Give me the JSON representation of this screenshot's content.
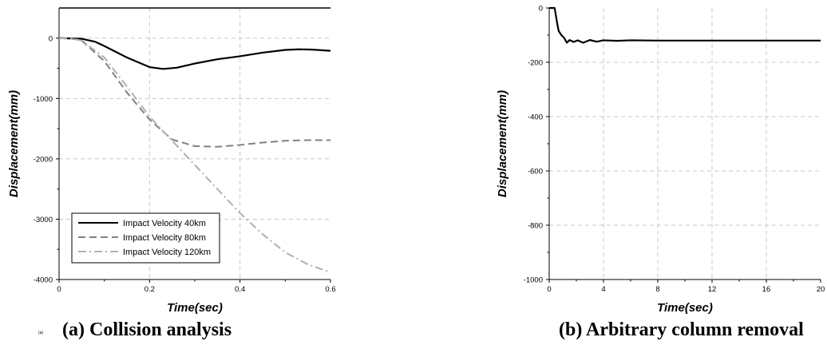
{
  "figure": {
    "panel_a_marker": "(a)",
    "caption_a": "(a) Collision analysis",
    "caption_b": "(b) Arbitrary column removal"
  },
  "chart_data": [
    {
      "type": "line",
      "xlabel": "Time(sec)",
      "ylabel": "Displacement(mm)",
      "xlim": [
        0,
        0.6
      ],
      "ylim": [
        -4000,
        500
      ],
      "xticks": [
        0,
        0.2,
        0.4,
        0.6
      ],
      "xtick_labels": [
        "0",
        "0.2",
        "0.4",
        "0.6"
      ],
      "yticks": [
        0,
        -1000,
        -2000,
        -3000,
        -4000
      ],
      "ytick_labels": [
        "0",
        "-1000",
        "-2000",
        "-3000",
        "-4000"
      ],
      "grid": true,
      "legend_position": "bottom-left",
      "series": [
        {
          "name": "Impact Velocity 40km",
          "color": "#000000",
          "dash": "solid",
          "x": [
            0,
            0.05,
            0.08,
            0.1,
            0.15,
            0.2,
            0.23,
            0.26,
            0.3,
            0.35,
            0.4,
            0.45,
            0.5,
            0.53,
            0.56,
            0.6
          ],
          "y": [
            0,
            -10,
            -60,
            -130,
            -320,
            -480,
            -510,
            -490,
            -420,
            -350,
            -300,
            -240,
            -195,
            -185,
            -190,
            -210
          ]
        },
        {
          "name": "Impact Velocity 80km",
          "color": "#808080",
          "dash": "dashed",
          "x": [
            0,
            0.03,
            0.05,
            0.1,
            0.15,
            0.2,
            0.25,
            0.3,
            0.35,
            0.4,
            0.45,
            0.5,
            0.55,
            0.6
          ],
          "y": [
            0,
            -10,
            -40,
            -380,
            -900,
            -1350,
            -1680,
            -1790,
            -1800,
            -1770,
            -1730,
            -1700,
            -1690,
            -1690
          ]
        },
        {
          "name": "Impact Velocity 120km",
          "color": "#b0b0b0",
          "dash": "dashdot",
          "x": [
            0,
            0.03,
            0.05,
            0.1,
            0.15,
            0.2,
            0.25,
            0.3,
            0.35,
            0.4,
            0.45,
            0.5,
            0.55,
            0.6
          ],
          "y": [
            0,
            -10,
            -40,
            -320,
            -800,
            -1300,
            -1700,
            -2100,
            -2500,
            -2900,
            -3250,
            -3550,
            -3750,
            -3880
          ]
        }
      ]
    },
    {
      "type": "line",
      "xlabel": "Time(sec)",
      "ylabel": "Displacement(mm)",
      "xlim": [
        0,
        20
      ],
      "ylim": [
        -1000,
        0
      ],
      "xticks": [
        0,
        4,
        8,
        12,
        16,
        20
      ],
      "xtick_labels": [
        "0",
        "4",
        "8",
        "12",
        "16",
        "20"
      ],
      "yticks": [
        0,
        -200,
        -400,
        -600,
        -800,
        -1000
      ],
      "ytick_labels": [
        "0",
        "-200",
        "-400",
        "-600",
        "-800",
        "-1000"
      ],
      "grid": true,
      "series": [
        {
          "color": "#000000",
          "dash": "solid",
          "x": [
            0,
            0.4,
            0.6,
            0.7,
            0.9,
            1.1,
            1.3,
            1.5,
            1.8,
            2.1,
            2.5,
            3,
            3.5,
            4,
            5,
            6,
            8,
            12,
            16,
            20
          ],
          "y": [
            0,
            0,
            -60,
            -85,
            -100,
            -110,
            -128,
            -118,
            -125,
            -119,
            -128,
            -118,
            -124,
            -119,
            -121,
            -119,
            -120,
            -120,
            -120,
            -120
          ]
        }
      ]
    }
  ]
}
